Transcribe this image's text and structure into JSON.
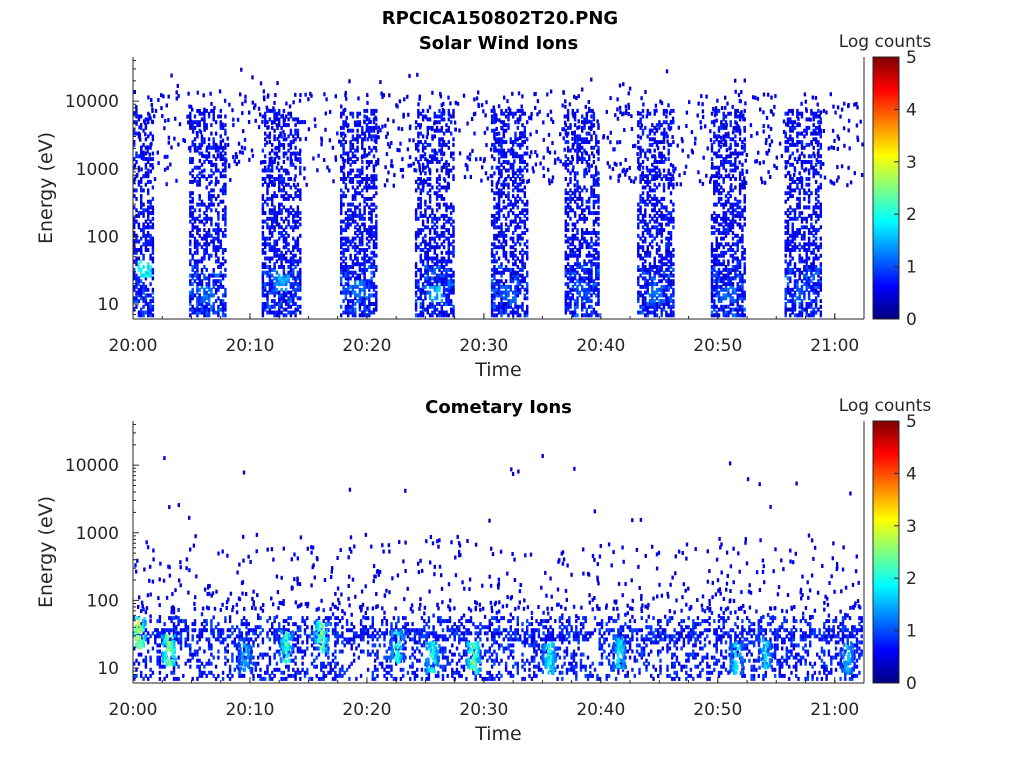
{
  "figure_title": "RPCICA150802T20.PNG",
  "colorbar_scale": [
    "#00007f",
    "#0000ff",
    "#0080ff",
    "#00ffff",
    "#80ff80",
    "#ffff00",
    "#ff8000",
    "#ff0000",
    "#800000"
  ],
  "chart_data": [
    {
      "type": "heatmap",
      "title": "Solar Wind Ions",
      "xlabel": "Time",
      "ylabel": "Energy (eV)",
      "x_tick_labels": [
        "20:00",
        "20:10",
        "20:20",
        "20:30",
        "20:40",
        "20:50",
        "21:00"
      ],
      "x_ticks_min": [
        0,
        10,
        20,
        30,
        40,
        50,
        60
      ],
      "xlim_min": [
        0,
        62.5
      ],
      "y_scale": "log",
      "y_tick_labels": [
        "10",
        "100",
        "1000",
        "10000"
      ],
      "y_ticks": [
        10,
        100,
        1000,
        10000
      ],
      "ylim": [
        6,
        45000
      ],
      "colorbar_label": "Log counts",
      "colorbar_range": [
        0,
        5
      ],
      "colorbar_tick_labels": [
        "0",
        "1",
        "2",
        "3",
        "4",
        "5"
      ],
      "colorbar_ticks": [
        0,
        1,
        2,
        3,
        4,
        5
      ],
      "bursts": [
        {
          "start_min": 0.0,
          "end_min": 1.6,
          "peak_log_counts": 2.2,
          "peak_energy_eV": 35
        },
        {
          "start_min": 4.8,
          "end_min": 8.0,
          "peak_log_counts": 1.3,
          "peak_energy_eV": 15
        },
        {
          "start_min": 11.0,
          "end_min": 14.3,
          "peak_log_counts": 1.6,
          "peak_energy_eV": 22
        },
        {
          "start_min": 17.7,
          "end_min": 20.7,
          "peak_log_counts": 1.3,
          "peak_energy_eV": 18
        },
        {
          "start_min": 24.1,
          "end_min": 27.4,
          "peak_log_counts": 1.7,
          "peak_energy_eV": 15
        },
        {
          "start_min": 30.6,
          "end_min": 33.7,
          "peak_log_counts": 1.2,
          "peak_energy_eV": 15
        },
        {
          "start_min": 36.9,
          "end_min": 39.9,
          "peak_log_counts": 1.1,
          "peak_energy_eV": 15
        },
        {
          "start_min": 43.1,
          "end_min": 46.2,
          "peak_log_counts": 1.3,
          "peak_energy_eV": 15
        },
        {
          "start_min": 49.4,
          "end_min": 52.4,
          "peak_log_counts": 1.2,
          "peak_energy_eV": 15
        },
        {
          "start_min": 55.7,
          "end_min": 58.9,
          "peak_log_counts": 1.1,
          "peak_energy_eV": 15
        }
      ]
    },
    {
      "type": "heatmap",
      "title": "Cometary Ions",
      "xlabel": "Time",
      "ylabel": "Energy (eV)",
      "x_tick_labels": [
        "20:00",
        "20:10",
        "20:20",
        "20:30",
        "20:40",
        "20:50",
        "21:00"
      ],
      "x_ticks_min": [
        0,
        10,
        20,
        30,
        40,
        50,
        60
      ],
      "xlim_min": [
        0,
        62.5
      ],
      "y_scale": "log",
      "y_tick_labels": [
        "10",
        "100",
        "1000",
        "10000"
      ],
      "y_ticks": [
        10,
        100,
        1000,
        10000
      ],
      "ylim": [
        6,
        45000
      ],
      "colorbar_label": "Log counts",
      "colorbar_range": [
        0,
        5
      ],
      "colorbar_tick_labels": [
        "0",
        "1",
        "2",
        "3",
        "4",
        "5"
      ],
      "colorbar_ticks": [
        0,
        1,
        2,
        3,
        4,
        5
      ],
      "bursts": [
        {
          "center_min": 0.4,
          "peak_log_counts": 3.3,
          "peak_energy_eV": 35
        },
        {
          "center_min": 3.0,
          "peak_log_counts": 3.0,
          "peak_energy_eV": 20
        },
        {
          "center_min": 9.5,
          "peak_log_counts": 1.8,
          "peak_energy_eV": 15
        },
        {
          "center_min": 13.0,
          "peak_log_counts": 2.5,
          "peak_energy_eV": 22
        },
        {
          "center_min": 16.0,
          "peak_log_counts": 2.8,
          "peak_energy_eV": 30
        },
        {
          "center_min": 22.5,
          "peak_log_counts": 2.3,
          "peak_energy_eV": 22
        },
        {
          "center_min": 25.5,
          "peak_log_counts": 2.4,
          "peak_energy_eV": 15
        },
        {
          "center_min": 29.0,
          "peak_log_counts": 2.9,
          "peak_energy_eV": 15
        },
        {
          "center_min": 35.5,
          "peak_log_counts": 2.3,
          "peak_energy_eV": 15
        },
        {
          "center_min": 41.5,
          "peak_log_counts": 2.1,
          "peak_energy_eV": 18
        },
        {
          "center_min": 51.5,
          "peak_log_counts": 2.0,
          "peak_energy_eV": 15
        },
        {
          "center_min": 54.0,
          "peak_log_counts": 1.9,
          "peak_energy_eV": 18
        },
        {
          "center_min": 61.0,
          "peak_log_counts": 1.8,
          "peak_energy_eV": 15
        }
      ]
    }
  ]
}
